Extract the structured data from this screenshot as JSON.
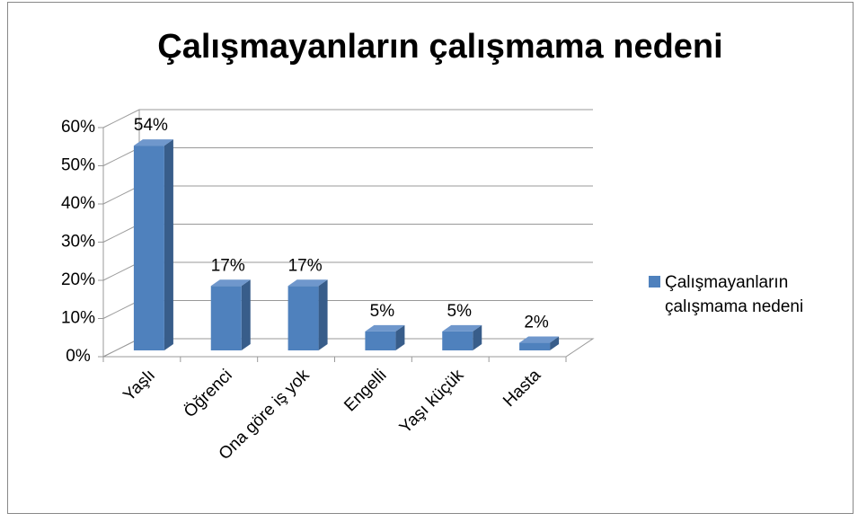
{
  "chart_data": {
    "type": "bar3d",
    "title": "Çalışmayanların çalışmama nedeni",
    "categories": [
      "Yaşlı",
      "Öğrenci",
      "Ona göre iş yok",
      "Engelli",
      "Yaşı küçük",
      "Hasta"
    ],
    "series": [
      {
        "name": "Çalışmayanların çalışmama nedeni",
        "color": "#4f81bd",
        "values": [
          54,
          17,
          17,
          5,
          5,
          2
        ],
        "value_labels": [
          "54%",
          "17%",
          "17%",
          "5%",
          "5%",
          "2%"
        ]
      }
    ],
    "ylim": [
      0,
      60
    ],
    "yticks": [
      {
        "value": 0,
        "label": "0%"
      },
      {
        "value": 10,
        "label": "10%"
      },
      {
        "value": 20,
        "label": "20%"
      },
      {
        "value": 30,
        "label": "30%"
      },
      {
        "value": 40,
        "label": "40%"
      },
      {
        "value": 50,
        "label": "50%"
      },
      {
        "value": 60,
        "label": "60%"
      }
    ],
    "grid": true,
    "legend": "right"
  }
}
